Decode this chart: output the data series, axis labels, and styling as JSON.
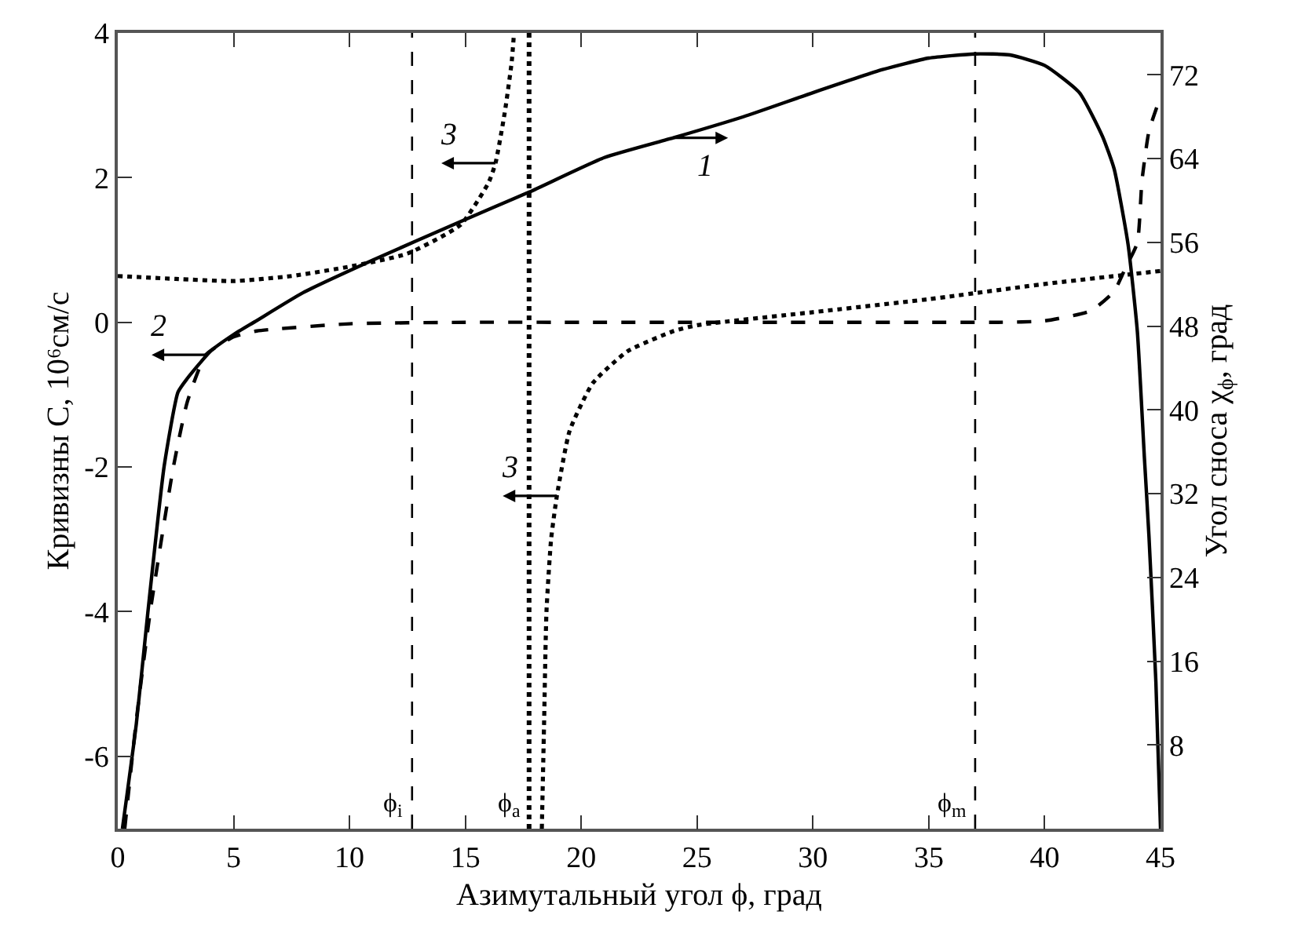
{
  "chart_data": {
    "type": "line",
    "xlabel": "Азимутальный угол ϕ, град",
    "ylabel": "Кривизны C, 10⁶см/с",
    "y2label": "Угол сноса χ$_{ϕ}$, град",
    "xlim": [
      0,
      45
    ],
    "xticks": [
      0,
      5,
      10,
      15,
      20,
      25,
      30,
      35,
      40,
      45
    ],
    "ylim": [
      -7,
      4
    ],
    "yticks": [
      -6,
      -4,
      -2,
      0,
      2,
      4
    ],
    "y2lim": [
      0,
      76
    ],
    "y2ticks": [
      8,
      16,
      24,
      32,
      40,
      48,
      56,
      64,
      72
    ],
    "marker": "none",
    "series": [
      {
        "color": "#000000",
        "axis": "y2",
        "line_style": "solid",
        "x": [
          0.2,
          0.8,
          1.3,
          2.0,
          2.6,
          3,
          4,
          5,
          5.9,
          8,
          11,
          14.8,
          17.75,
          21,
          24,
          27,
          30,
          33,
          35,
          37,
          38.5,
          40,
          41.5,
          42.5,
          43,
          43.6,
          44,
          44.3,
          44.5,
          44.8,
          45
        ],
        "values": [
          0,
          10,
          20.7,
          34.6,
          41.7,
          43,
          45.6,
          47.2,
          48.4,
          51.2,
          54.3,
          58,
          60.8,
          64.1,
          66,
          68,
          70.3,
          72.5,
          73.6,
          74,
          73.9,
          72.9,
          70.3,
          66.1,
          63,
          55.8,
          47.5,
          35.6,
          28,
          14,
          0
        ]
      },
      {
        "color": "#000000",
        "line_style": "dashed",
        "x": [
          0.3,
          0.8,
          1.4,
          2.4,
          3,
          3.8,
          5,
          6,
          10,
          15,
          20,
          25,
          30,
          35,
          38,
          40,
          42,
          43,
          43.5,
          44,
          44.2,
          44.5,
          45
        ],
        "values": [
          -7,
          -5.5,
          -4,
          -2,
          -1.1,
          -0.45,
          -0.2,
          -0.12,
          -0.02,
          0,
          0,
          0,
          0,
          0,
          0,
          0.02,
          0.16,
          0.43,
          0.76,
          1.1,
          1.96,
          2.64,
          3.12
        ]
      },
      {
        "color": "#000000",
        "line_style": "dotted",
        "x": [
          0,
          2.5,
          5,
          7.5,
          10,
          12.5,
          14.8,
          16,
          16.3,
          16.7,
          17.0,
          17.1,
          17.5,
          18.3,
          18.4,
          18.5,
          18.7,
          18.95,
          19.5,
          20.5,
          22,
          24,
          25,
          30,
          35,
          40,
          43.6,
          45
        ],
        "values": [
          0.64,
          0.6,
          0.57,
          0.64,
          0.77,
          0.95,
          1.35,
          1.93,
          2.2,
          2.9,
          3.6,
          4,
          null,
          -7,
          -5.5,
          -4,
          -3,
          -2.4,
          -1.5,
          -0.84,
          -0.4,
          -0.12,
          -0.04,
          0.14,
          0.32,
          0.53,
          0.66,
          0.71
        ]
      }
    ],
    "ref_lines": [
      {
        "axis": "x",
        "value": 12.7,
        "label": "ϕ$_{i}$",
        "line_style": "dashed",
        "color": "#000000"
      },
      {
        "axis": "x",
        "value": 17.75,
        "label": "ϕ$_{a}$",
        "line_style": "dotted",
        "color": "#000000"
      },
      {
        "axis": "x",
        "value": 37,
        "label": "ϕ$_{m}$",
        "line_style": "dashed",
        "color": "#000000"
      }
    ],
    "annotations": [
      {
        "text": "1",
        "x": 24,
        "y": 2.55
      },
      {
        "text": "2",
        "x": 3.8,
        "y": -0.45
      },
      {
        "text": "3",
        "x": 16.3,
        "y": 2.2
      },
      {
        "text": "3",
        "x": 18.95,
        "y": -2.4
      }
    ]
  }
}
